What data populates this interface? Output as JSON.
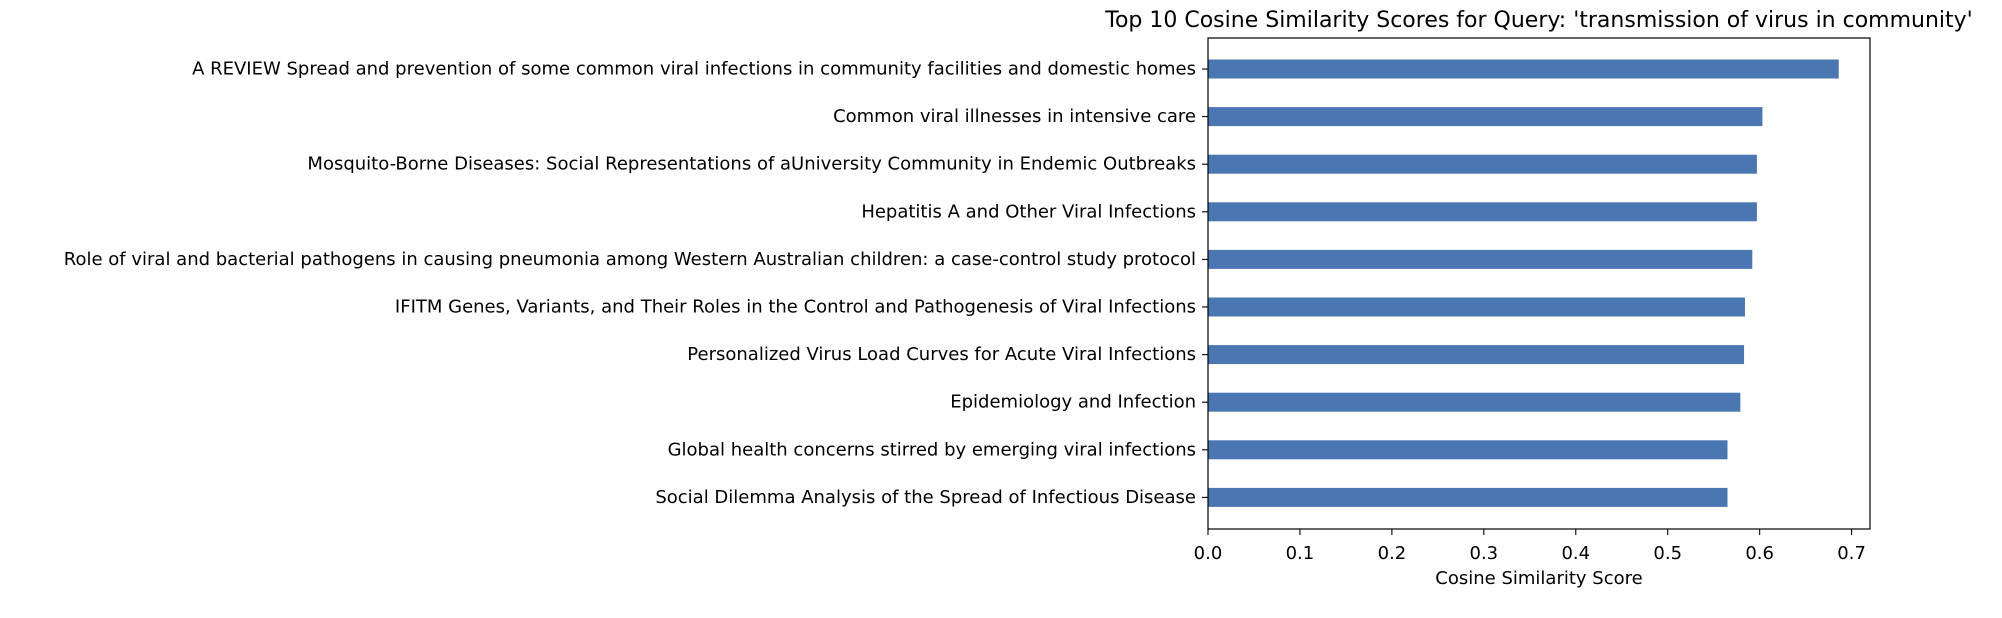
{
  "chart_data": {
    "type": "bar",
    "orientation": "horizontal",
    "title": "Top 10 Cosine Similarity Scores for Query: 'transmission of virus in community'",
    "xlabel": "Cosine Similarity Score",
    "ylabel": "",
    "xlim": [
      0.0,
      0.72
    ],
    "xticks": [
      "0.0",
      "0.1",
      "0.2",
      "0.3",
      "0.4",
      "0.5",
      "0.6",
      "0.7"
    ],
    "grid": false,
    "bar_color": "#4a76b2",
    "categories": [
      "A REVIEW Spread and prevention of some common viral infections in community facilities and domestic homes",
      "Common viral illnesses in intensive care",
      "Mosquito-Borne Diseases: Social Representations of aUniversity Community in Endemic Outbreaks",
      "Hepatitis A and Other Viral Infections",
      "Role of viral and bacterial pathogens in causing pneumonia among Western Australian children: a case-control study protocol",
      "IFITM Genes, Variants, and Their Roles in the Control and Pathogenesis of Viral Infections",
      "Personalized Virus Load Curves for Acute Viral Infections",
      "Epidemiology and Infection",
      "Global health concerns stirred by emerging viral infections",
      "Social Dilemma Analysis of the Spread of Infectious Disease"
    ],
    "values": [
      0.686,
      0.603,
      0.597,
      0.597,
      0.592,
      0.584,
      0.583,
      0.579,
      0.565,
      0.565
    ]
  }
}
